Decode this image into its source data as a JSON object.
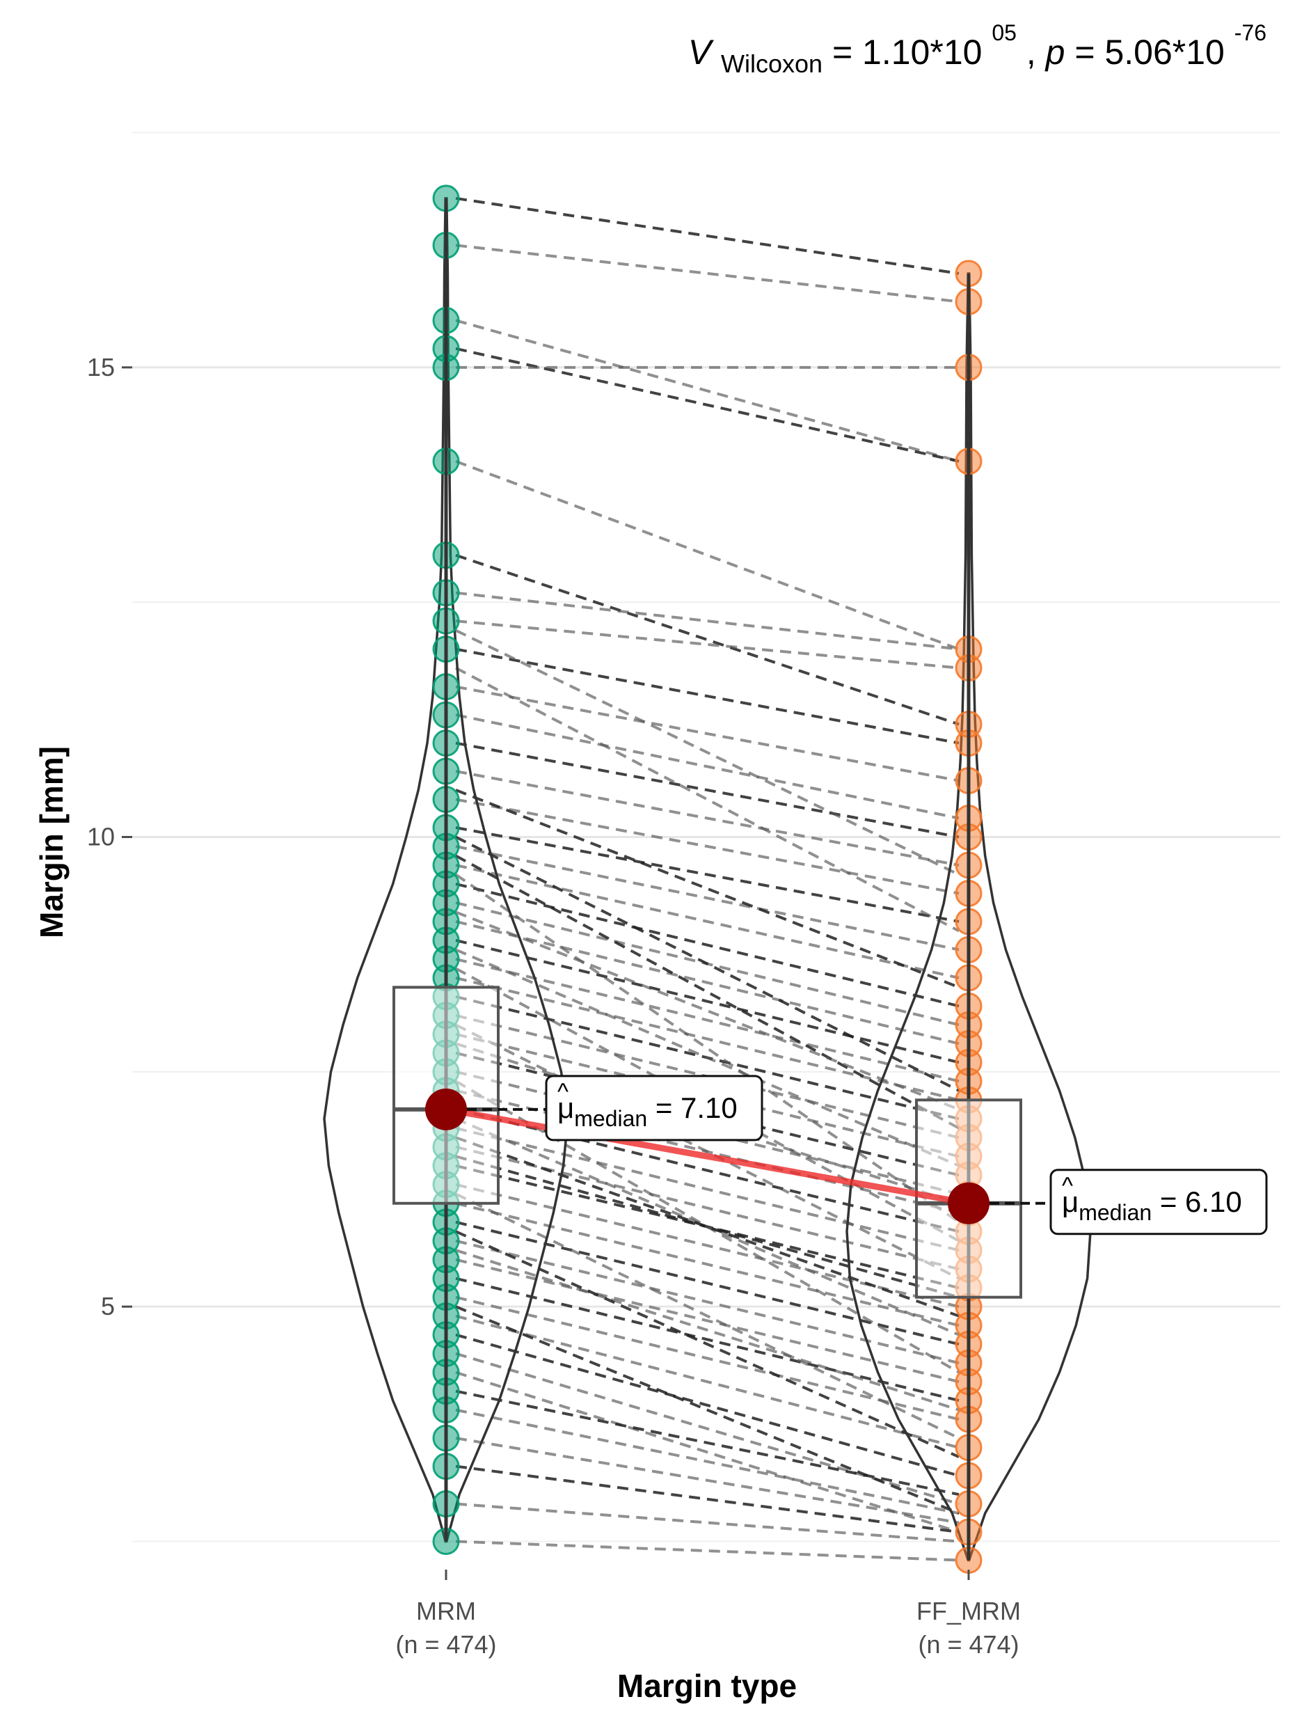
{
  "chart_data": {
    "type": "violin-box-paired",
    "subtitle": {
      "stat_symbol": "V",
      "stat_subscript": "Wilcoxon",
      "stat_mantissa": "1.10*10",
      "stat_exponent": "05",
      "p_symbol": "p",
      "p_mantissa": "5.06*10",
      "p_exponent": "-76"
    },
    "xlabel": "Margin type",
    "ylabel": "Margin [mm]",
    "ylim": [
      2.2,
      17.8
    ],
    "yticks": [
      5,
      10,
      15
    ],
    "grid": true,
    "groups": [
      {
        "name": "MRM",
        "n_label": "(n = 474)",
        "color": "#009E73",
        "median": 7.1,
        "q1": 6.1,
        "q3": 8.4,
        "min": 2.5,
        "max": 16.8,
        "median_label": {
          "symbol": "μ",
          "subscript": "median",
          "value": "7.10"
        },
        "points": [
          2.5,
          2.9,
          3.3,
          3.6,
          3.9,
          4.1,
          4.3,
          4.5,
          4.7,
          4.9,
          5.1,
          5.3,
          5.5,
          5.7,
          5.9,
          6.1,
          6.3,
          6.5,
          6.7,
          6.9,
          7.1,
          7.3,
          7.5,
          7.7,
          7.9,
          8.1,
          8.3,
          8.5,
          8.7,
          8.9,
          9.1,
          9.3,
          9.5,
          9.7,
          9.9,
          10.1,
          10.4,
          10.7,
          11.0,
          11.3,
          11.6,
          12.0,
          12.3,
          12.6,
          13.0,
          14.0,
          15.0,
          15.2,
          15.5,
          16.3,
          16.8
        ]
      },
      {
        "name": "FF_MRM",
        "n_label": "(n = 474)",
        "color": "#F5792A",
        "median": 6.1,
        "q1": 5.1,
        "q3": 7.2,
        "min": 2.3,
        "max": 16.0,
        "median_label": {
          "symbol": "μ",
          "subscript": "median",
          "value": "6.10"
        },
        "points": [
          2.3,
          2.6,
          2.9,
          3.2,
          3.5,
          3.8,
          4.0,
          4.2,
          4.4,
          4.6,
          4.8,
          5.0,
          5.2,
          5.4,
          5.6,
          5.8,
          6.0,
          6.2,
          6.4,
          6.6,
          6.8,
          7.0,
          7.2,
          7.4,
          7.6,
          7.8,
          8.0,
          8.2,
          8.5,
          8.8,
          9.1,
          9.4,
          9.7,
          10.0,
          10.2,
          10.6,
          11.0,
          11.2,
          11.8,
          12.0,
          14.0,
          15.0,
          15.7,
          16.0
        ]
      }
    ],
    "pairs": [
      [
        16.8,
        16.0
      ],
      [
        16.3,
        15.7
      ],
      [
        15.5,
        14.0
      ],
      [
        15.2,
        14.0
      ],
      [
        15.0,
        15.0
      ],
      [
        14.0,
        12.0
      ],
      [
        13.0,
        11.2
      ],
      [
        12.6,
        12.0
      ],
      [
        12.3,
        11.8
      ],
      [
        12.0,
        11.0
      ],
      [
        11.6,
        10.6
      ],
      [
        11.3,
        10.2
      ],
      [
        11.0,
        10.0
      ],
      [
        10.7,
        9.7
      ],
      [
        10.4,
        9.4
      ],
      [
        10.1,
        9.1
      ],
      [
        9.9,
        8.8
      ],
      [
        9.7,
        8.5
      ],
      [
        9.5,
        8.2
      ],
      [
        9.3,
        8.0
      ],
      [
        9.1,
        7.8
      ],
      [
        8.9,
        7.6
      ],
      [
        8.7,
        7.4
      ],
      [
        8.5,
        7.2
      ],
      [
        8.3,
        7.0
      ],
      [
        8.1,
        6.8
      ],
      [
        7.9,
        6.6
      ],
      [
        7.7,
        6.4
      ],
      [
        7.5,
        6.2
      ],
      [
        7.3,
        6.0
      ],
      [
        7.1,
        5.8
      ],
      [
        6.9,
        5.6
      ],
      [
        6.7,
        5.4
      ],
      [
        6.5,
        5.2
      ],
      [
        6.3,
        5.0
      ],
      [
        6.1,
        4.8
      ],
      [
        5.9,
        4.6
      ],
      [
        5.7,
        4.4
      ],
      [
        5.5,
        4.2
      ],
      [
        5.3,
        4.0
      ],
      [
        5.1,
        3.8
      ],
      [
        4.9,
        3.5
      ],
      [
        4.7,
        3.2
      ],
      [
        4.5,
        2.9
      ],
      [
        4.3,
        2.6
      ],
      [
        4.1,
        3.0
      ],
      [
        3.9,
        2.8
      ],
      [
        3.6,
        2.7
      ],
      [
        3.3,
        2.6
      ],
      [
        2.9,
        2.5
      ],
      [
        2.5,
        2.3
      ],
      [
        9.8,
        6.9
      ],
      [
        8.6,
        5.7
      ],
      [
        7.4,
        4.3
      ],
      [
        6.6,
        5.1
      ],
      [
        6.2,
        3.6
      ],
      [
        5.6,
        3.9
      ],
      [
        5.0,
        2.8
      ],
      [
        8.8,
        6.5
      ],
      [
        9.6,
        5.9
      ],
      [
        10.0,
        7.3
      ],
      [
        7.0,
        4.7
      ],
      [
        8.0,
        5.3
      ],
      [
        6.8,
        4.9
      ],
      [
        7.8,
        6.1
      ],
      [
        9.2,
        7.1
      ],
      [
        10.5,
        8.4
      ],
      [
        11.8,
        9.0
      ],
      [
        12.2,
        9.6
      ],
      [
        5.8,
        3.4
      ]
    ],
    "violin": {
      "MRM": [
        [
          2.5,
          0.5
        ],
        [
          3.0,
          12
        ],
        [
          3.5,
          30
        ],
        [
          4.0,
          48
        ],
        [
          4.5,
          62
        ],
        [
          5.0,
          75
        ],
        [
          5.5,
          86
        ],
        [
          6.0,
          97
        ],
        [
          6.5,
          106
        ],
        [
          7.0,
          110
        ],
        [
          7.5,
          104
        ],
        [
          8.0,
          93
        ],
        [
          8.5,
          80
        ],
        [
          9.0,
          64
        ],
        [
          9.5,
          48
        ],
        [
          10.0,
          36
        ],
        [
          10.5,
          25
        ],
        [
          11.0,
          17
        ],
        [
          11.5,
          12
        ],
        [
          12.0,
          9
        ],
        [
          12.5,
          6
        ],
        [
          13.0,
          4
        ],
        [
          14.0,
          3
        ],
        [
          15.0,
          2
        ],
        [
          16.0,
          1.5
        ],
        [
          16.8,
          0.5
        ]
      ],
      "FF_MRM": [
        [
          2.3,
          0.5
        ],
        [
          2.8,
          16
        ],
        [
          3.3,
          42
        ],
        [
          3.8,
          68
        ],
        [
          4.3,
          88
        ],
        [
          4.8,
          104
        ],
        [
          5.3,
          115
        ],
        [
          5.8,
          118
        ],
        [
          6.3,
          114
        ],
        [
          6.8,
          103
        ],
        [
          7.3,
          88
        ],
        [
          7.8,
          70
        ],
        [
          8.3,
          52
        ],
        [
          8.8,
          36
        ],
        [
          9.3,
          24
        ],
        [
          9.8,
          16
        ],
        [
          10.3,
          11
        ],
        [
          10.8,
          8
        ],
        [
          11.3,
          6
        ],
        [
          12.0,
          4.5
        ],
        [
          13.0,
          3
        ],
        [
          14.0,
          2.5
        ],
        [
          15.0,
          2
        ],
        [
          16.0,
          0.5
        ]
      ]
    }
  }
}
